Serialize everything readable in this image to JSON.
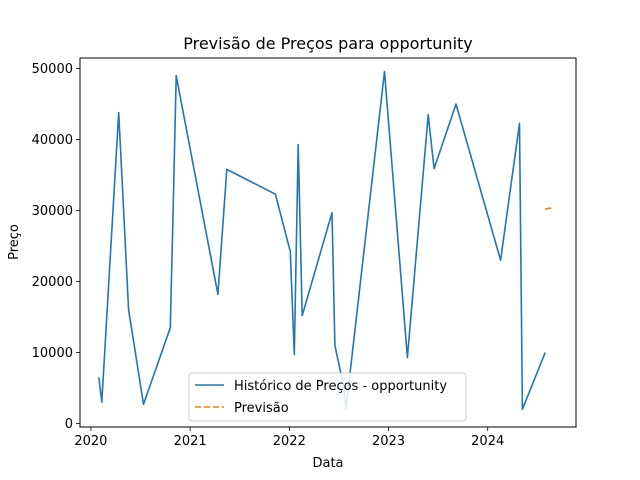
{
  "chart_data": {
    "type": "line",
    "title": "Previsão de Preços para opportunity",
    "xlabel": "Data",
    "ylabel": "Preço",
    "xlim": [
      2019.89,
      2024.89
    ],
    "ylim": [
      -500,
      51500
    ],
    "x_ticks": [
      2020,
      2021,
      2022,
      2023,
      2024
    ],
    "x_tick_labels": [
      "2020",
      "2021",
      "2022",
      "2023",
      "2024"
    ],
    "y_ticks": [
      0,
      10000,
      20000,
      30000,
      40000,
      50000
    ],
    "y_tick_labels": [
      "0",
      "10000",
      "20000",
      "30000",
      "40000",
      "50000"
    ],
    "legend_position": "lower-center",
    "series": [
      {
        "name": "Histórico de Preços - opportunity",
        "color": "#1f77b4",
        "style": "solid",
        "x": [
          2020.08,
          2020.11,
          2020.28,
          2020.38,
          2020.53,
          2020.8,
          2020.83,
          2020.86,
          2021.28,
          2021.37,
          2021.86,
          2022.01,
          2022.05,
          2022.09,
          2022.13,
          2022.43,
          2022.46,
          2022.55,
          2022.57,
          2022.96,
          2023.19,
          2023.33,
          2023.4,
          2023.46,
          2023.68,
          2024.13,
          2024.32,
          2024.35,
          2024.58
        ],
        "y": [
          6500,
          3000,
          43800,
          16000,
          2700,
          13500,
          30500,
          49000,
          18200,
          35800,
          32300,
          24200,
          9700,
          39300,
          15200,
          29700,
          11000,
          5000,
          2000,
          49600,
          9300,
          32000,
          43500,
          35900,
          45000,
          23000,
          42300,
          2000,
          10000
        ]
      },
      {
        "name": "Previsão",
        "color": "#ff7f0e",
        "style": "dashed",
        "x": [
          2024.58,
          2024.66
        ],
        "y": [
          30200,
          30400
        ]
      }
    ]
  }
}
